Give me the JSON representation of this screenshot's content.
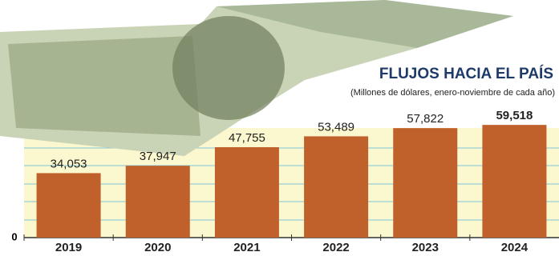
{
  "chart_data": {
    "type": "bar",
    "title": "FLUJOS HACIA EL PAÍS",
    "subtitle": "(Millones de dólares, enero-noviembre de cada año)",
    "categories": [
      "2019",
      "2020",
      "2021",
      "2022",
      "2023",
      "2024"
    ],
    "values": [
      34053,
      37947,
      47755,
      53489,
      57822,
      59518
    ],
    "value_labels": [
      "34,053",
      "37,947",
      "47,755",
      "53,489",
      "57,822",
      "59,518"
    ],
    "color": "#c0612b",
    "ylim": [
      0,
      60000
    ],
    "yticks": [
      0
    ]
  }
}
